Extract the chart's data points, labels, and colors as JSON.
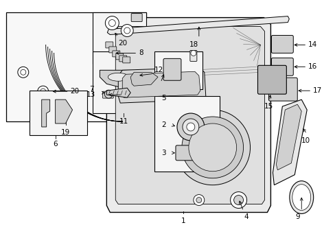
{
  "bg_color": "#ffffff",
  "lc": "#000000",
  "gray_light": "#e8e8e8",
  "gray_med": "#d0d0d0",
  "gray_dark": "#b8b8b8",
  "dot_fill": "#f5f5f5"
}
